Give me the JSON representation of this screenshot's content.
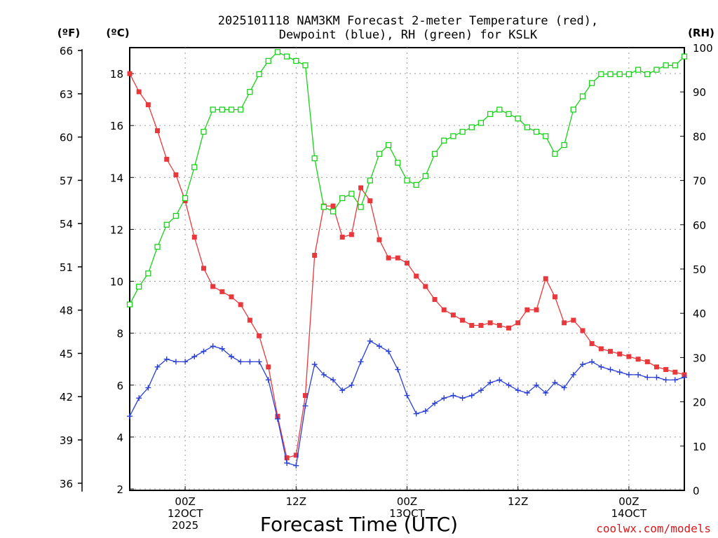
{
  "chart_data": {
    "type": "line",
    "title": [
      "2025101118 NAM3KM Forecast 2-meter Temperature (red),",
      "Dewpoint (blue), RH (green) for KSLK"
    ],
    "units": {
      "fahrenheit": "(ºF)",
      "celsius": "(ºC)",
      "rh": "(RH)"
    },
    "xlabel": "Forecast Time (UTC)",
    "credit": "coolwx.com/models",
    "x_hours_range": [
      0,
      60
    ],
    "x_ticks": [
      {
        "hour": 6,
        "lines": [
          "00Z",
          "12OCT",
          "2025"
        ]
      },
      {
        "hour": 18,
        "lines": [
          "12Z"
        ]
      },
      {
        "hour": 30,
        "lines": [
          "00Z",
          "13OCT"
        ]
      },
      {
        "hour": 42,
        "lines": [
          "12Z"
        ]
      },
      {
        "hour": 54,
        "lines": [
          "00Z",
          "14OCT"
        ]
      }
    ],
    "y_celsius": {
      "min": 2,
      "max": 19,
      "ticks": [
        "2",
        "4",
        "6",
        "8",
        "10",
        "12",
        "14",
        "16",
        "18"
      ]
    },
    "y_fahrenheit": {
      "ticks": [
        "36",
        "39",
        "42",
        "45",
        "48",
        "51",
        "54",
        "57",
        "60",
        "63",
        "66"
      ]
    },
    "y_rh": {
      "min": 0,
      "max": 100,
      "ticks": [
        "0",
        "10",
        "20",
        "30",
        "40",
        "50",
        "60",
        "70",
        "80",
        "90",
        "100"
      ]
    },
    "series": [
      {
        "name": "Temperature (°C)",
        "axis": "celsius",
        "color": "#e8383b",
        "marker": "filled-square",
        "x": [
          0,
          1,
          2,
          3,
          4,
          5,
          6,
          7,
          8,
          9,
          10,
          11,
          12,
          13,
          14,
          15,
          16,
          17,
          18,
          19,
          20,
          21,
          22,
          23,
          24,
          25,
          26,
          27,
          28,
          29,
          30,
          31,
          32,
          33,
          34,
          35,
          36,
          37,
          38,
          39,
          40,
          41,
          42,
          43,
          44,
          45,
          46,
          47,
          48,
          49,
          50,
          51,
          52,
          53,
          54,
          55,
          56,
          57,
          58,
          59,
          60
        ],
        "values": [
          18.0,
          17.3,
          16.8,
          15.8,
          14.7,
          14.1,
          13.1,
          11.7,
          10.5,
          9.8,
          9.6,
          9.4,
          9.1,
          8.5,
          7.9,
          6.7,
          4.8,
          3.2,
          3.3,
          5.6,
          11.0,
          12.9,
          12.9,
          11.7,
          11.8,
          13.6,
          13.1,
          11.6,
          10.9,
          10.9,
          10.7,
          10.2,
          9.8,
          9.3,
          8.9,
          8.7,
          8.5,
          8.3,
          8.3,
          8.4,
          8.3,
          8.2,
          8.4,
          8.9,
          8.9,
          10.1,
          9.4,
          8.4,
          8.5,
          8.1,
          7.6,
          7.4,
          7.3,
          7.2,
          7.1,
          7.0,
          6.9,
          6.7,
          6.6,
          6.5,
          6.4
        ]
      },
      {
        "name": "Dewpoint (°C)",
        "axis": "celsius",
        "color": "#2a3fd6",
        "marker": "plus",
        "x": [
          0,
          1,
          2,
          3,
          4,
          5,
          6,
          7,
          8,
          9,
          10,
          11,
          12,
          13,
          14,
          15,
          16,
          17,
          18,
          19,
          20,
          21,
          22,
          23,
          24,
          25,
          26,
          27,
          28,
          29,
          30,
          31,
          32,
          33,
          34,
          35,
          36,
          37,
          38,
          39,
          40,
          41,
          42,
          43,
          44,
          45,
          46,
          47,
          48,
          49,
          50,
          51,
          52,
          53,
          54,
          55,
          56,
          57,
          58,
          59,
          60
        ],
        "values": [
          4.8,
          5.5,
          5.9,
          6.7,
          7.0,
          6.9,
          6.9,
          7.1,
          7.3,
          7.5,
          7.4,
          7.1,
          6.9,
          6.9,
          6.9,
          6.2,
          4.7,
          3.0,
          2.9,
          5.2,
          6.8,
          6.4,
          6.2,
          5.8,
          6.0,
          6.9,
          7.7,
          7.5,
          7.3,
          6.6,
          5.6,
          4.9,
          5.0,
          5.3,
          5.5,
          5.6,
          5.5,
          5.6,
          5.8,
          6.1,
          6.2,
          6.0,
          5.8,
          5.7,
          6.0,
          5.7,
          6.1,
          5.9,
          6.4,
          6.8,
          6.9,
          6.7,
          6.6,
          6.5,
          6.4,
          6.4,
          6.3,
          6.3,
          6.2,
          6.2,
          6.3
        ]
      },
      {
        "name": "RH (%)",
        "axis": "rh",
        "color": "#19d119",
        "marker": "open-square",
        "x": [
          0,
          1,
          2,
          3,
          4,
          5,
          6,
          7,
          8,
          9,
          10,
          11,
          12,
          13,
          14,
          15,
          16,
          17,
          18,
          19,
          20,
          21,
          22,
          23,
          24,
          25,
          26,
          27,
          28,
          29,
          30,
          31,
          32,
          33,
          34,
          35,
          36,
          37,
          38,
          39,
          40,
          41,
          42,
          43,
          44,
          45,
          46,
          47,
          48,
          49,
          50,
          51,
          52,
          53,
          54,
          55,
          56,
          57,
          58,
          59,
          60
        ],
        "values": [
          42,
          46,
          49,
          55,
          60,
          62,
          66,
          73,
          81,
          86,
          86,
          86,
          86,
          90,
          94,
          97,
          99,
          98,
          97,
          96,
          75,
          64,
          63,
          66,
          67,
          64,
          70,
          76,
          78,
          74,
          70,
          69,
          71,
          76,
          79,
          80,
          81,
          82,
          83,
          85,
          86,
          85,
          84,
          82,
          81,
          80,
          76,
          78,
          86,
          89,
          92,
          94,
          94,
          94,
          94,
          95,
          94,
          95,
          96,
          96,
          98
        ]
      }
    ]
  }
}
